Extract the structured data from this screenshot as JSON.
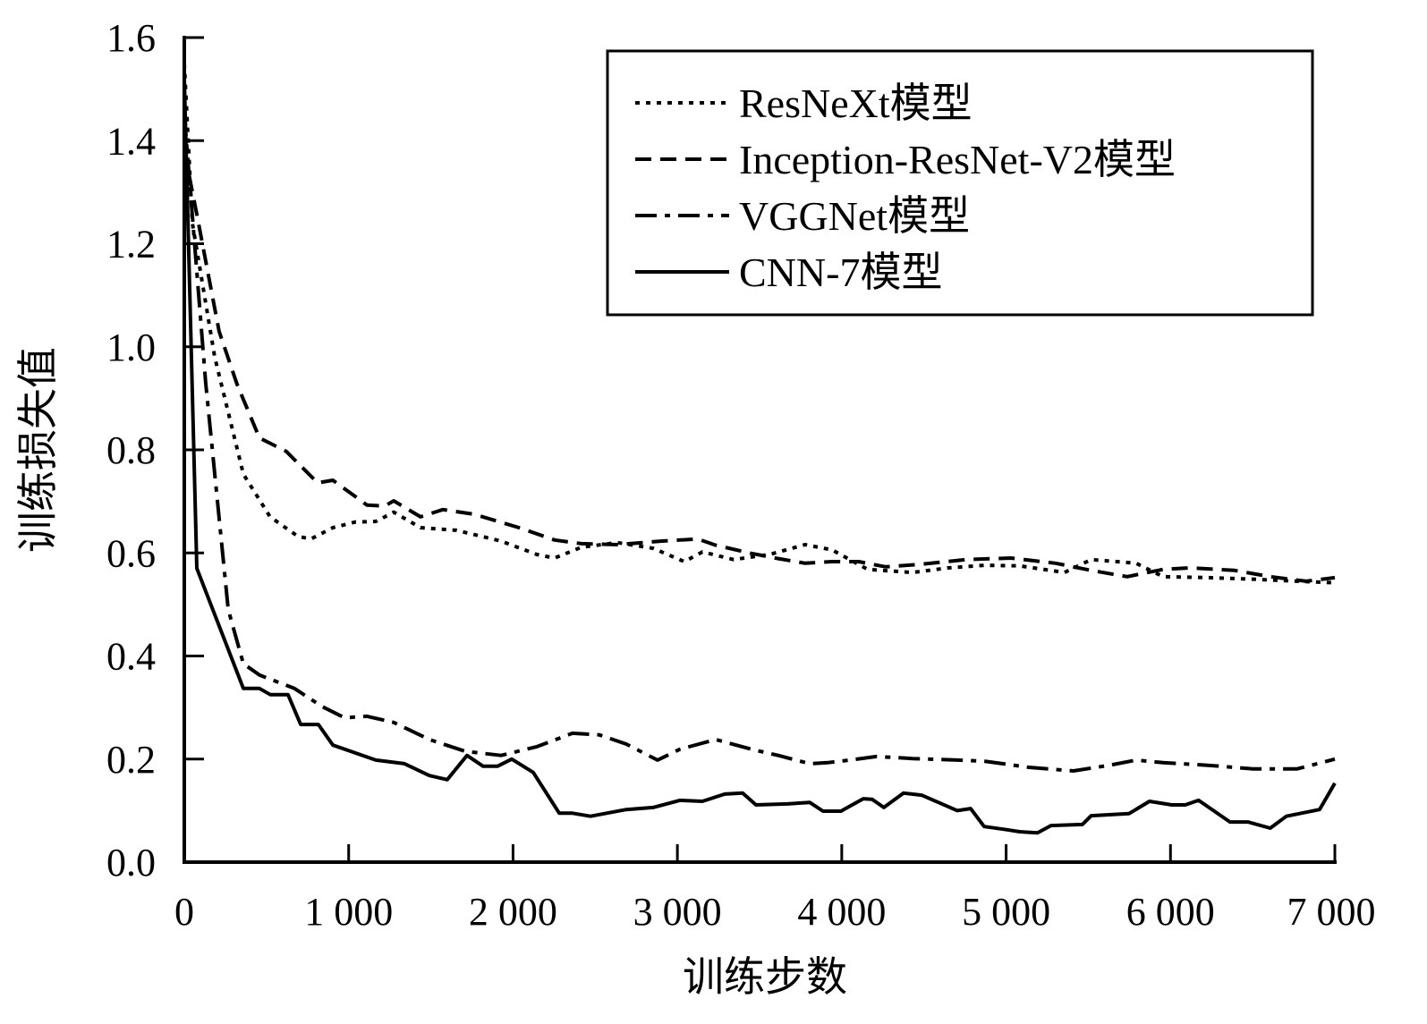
{
  "chart_data": {
    "type": "line",
    "title": "",
    "xlabel": "训练步数",
    "ylabel": "训练损失值",
    "xlim": [
      0,
      7000
    ],
    "ylim": [
      0,
      1.6
    ],
    "xticks": [
      0,
      1000,
      2000,
      3000,
      4000,
      5000,
      6000,
      7000
    ],
    "xtick_labels": [
      "0",
      "1 000",
      "2 000",
      "3 000",
      "4 000",
      "5 000",
      "6 000",
      "7 000"
    ],
    "yticks": [
      0,
      0.2,
      0.4,
      0.6,
      0.8,
      1.0,
      1.2,
      1.4,
      1.6
    ],
    "ytick_labels": [
      "0.0",
      "0.2",
      "0.4",
      "0.6",
      "0.8",
      "1.0",
      "1.2",
      "1.4",
      "1.6"
    ],
    "grid": false,
    "legend_position": "top-right",
    "series": [
      {
        "name": "ResNeXt模型",
        "style": "dotted",
        "x": [
          0,
          49,
          185,
          359,
          522,
          692,
          770,
          904,
          1040,
          1165,
          1274,
          1437,
          1654,
          1927,
          2145,
          2253,
          2416,
          2634,
          2852,
          3043,
          3152,
          3342,
          3560,
          3777,
          3940,
          4158,
          4431,
          4648,
          4866,
          5082,
          5355,
          5518,
          5791,
          5955,
          6227,
          6499,
          6771,
          7000
        ],
        "y": [
          1.55,
          1.24,
          0.98,
          0.753,
          0.67,
          0.632,
          0.627,
          0.649,
          0.66,
          0.661,
          0.679,
          0.649,
          0.644,
          0.623,
          0.597,
          0.59,
          0.611,
          0.62,
          0.609,
          0.583,
          0.602,
          0.587,
          0.597,
          0.616,
          0.606,
          0.568,
          0.562,
          0.571,
          0.576,
          0.575,
          0.562,
          0.587,
          0.58,
          0.554,
          0.552,
          0.549,
          0.545,
          0.542
        ]
      },
      {
        "name": "Inception-ResNet-V2模型",
        "style": "dashed",
        "x": [
          0,
          76,
          212,
          321,
          457,
          620,
          811,
          904,
          1111,
          1220,
          1274,
          1437,
          1573,
          1763,
          2036,
          2253,
          2416,
          2634,
          2907,
          3124,
          3233,
          3451,
          3614,
          3777,
          3940,
          4103,
          4267,
          4485,
          4757,
          5029,
          5301,
          5518,
          5736,
          5955,
          6118,
          6390,
          6607,
          6825,
          7000
        ],
        "y": [
          1.38,
          1.257,
          1.03,
          0.927,
          0.823,
          0.797,
          0.736,
          0.741,
          0.693,
          0.691,
          0.701,
          0.67,
          0.684,
          0.675,
          0.649,
          0.625,
          0.618,
          0.616,
          0.623,
          0.627,
          0.615,
          0.599,
          0.589,
          0.58,
          0.583,
          0.583,
          0.573,
          0.578,
          0.587,
          0.59,
          0.58,
          0.566,
          0.554,
          0.568,
          0.571,
          0.566,
          0.554,
          0.545,
          0.552
        ]
      },
      {
        "name": "VGGNet模型",
        "style": "dash-dot",
        "x": [
          0,
          130,
          267,
          359,
          457,
          670,
          838,
          975,
          1111,
          1274,
          1491,
          1709,
          1927,
          2145,
          2362,
          2525,
          2689,
          2879,
          3015,
          3233,
          3451,
          3614,
          3805,
          3913,
          4049,
          4212,
          4431,
          4703,
          4866,
          5138,
          5410,
          5628,
          5791,
          5955,
          6227,
          6499,
          6771,
          7000
        ],
        "y": [
          1.45,
          0.93,
          0.49,
          0.385,
          0.363,
          0.337,
          0.302,
          0.28,
          0.283,
          0.271,
          0.238,
          0.215,
          0.207,
          0.224,
          0.25,
          0.247,
          0.229,
          0.198,
          0.219,
          0.238,
          0.219,
          0.207,
          0.191,
          0.193,
          0.198,
          0.205,
          0.201,
          0.198,
          0.196,
          0.184,
          0.177,
          0.188,
          0.198,
          0.193,
          0.188,
          0.181,
          0.181,
          0.2
        ]
      },
      {
        "name": "CNN-7模型",
        "style": "solid",
        "x": [
          0,
          76,
          359,
          457,
          523,
          631,
          708,
          816,
          904,
          1165,
          1339,
          1491,
          1600,
          1720,
          1818,
          1905,
          1992,
          2123,
          2281,
          2362,
          2471,
          2689,
          2852,
          3015,
          3152,
          3288,
          3397,
          3478,
          3669,
          3805,
          3886,
          3995,
          4131,
          4185,
          4256,
          4376,
          4485,
          4594,
          4703,
          4784,
          4866,
          5002,
          5082,
          5191,
          5273,
          5464,
          5518,
          5747,
          5872,
          6008,
          6090,
          6171,
          6362,
          6471,
          6607,
          6705,
          6907,
          7000
        ],
        "y": [
          1.52,
          0.57,
          0.337,
          0.337,
          0.325,
          0.325,
          0.267,
          0.267,
          0.227,
          0.198,
          0.191,
          0.168,
          0.16,
          0.207,
          0.186,
          0.186,
          0.2,
          0.174,
          0.095,
          0.095,
          0.089,
          0.102,
          0.106,
          0.12,
          0.118,
          0.132,
          0.134,
          0.111,
          0.113,
          0.116,
          0.099,
          0.099,
          0.123,
          0.122,
          0.106,
          0.134,
          0.13,
          0.115,
          0.1,
          0.104,
          0.069,
          0.063,
          0.059,
          0.057,
          0.071,
          0.073,
          0.09,
          0.094,
          0.118,
          0.111,
          0.111,
          0.12,
          0.078,
          0.078,
          0.066,
          0.089,
          0.102,
          0.153
        ]
      }
    ]
  }
}
